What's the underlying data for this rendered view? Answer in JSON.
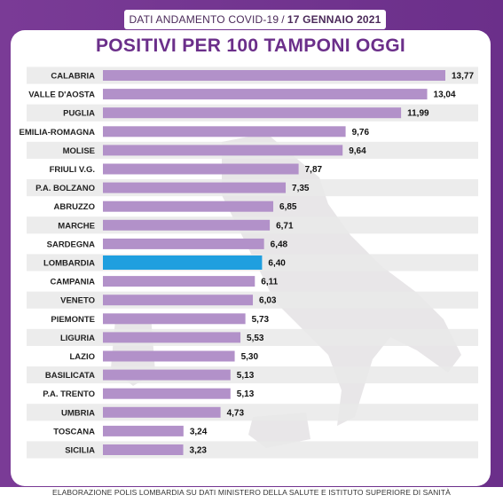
{
  "header": {
    "subtitle_left": "DATI ANDAMENTO COVID-19",
    "separator": "/",
    "date": "17 GENNAIO 2021"
  },
  "footer": {
    "text": "ELABORAZIONE POLIS LOMBARDIA SU DATI MINISTERO DELLA SALUTE E ISTITUTO SUPERIORE DI SANITÀ"
  },
  "colors": {
    "frame": "#6b2f8a",
    "bar_default": "#b291c9",
    "bar_highlight": "#1f9fdf",
    "row_shade": "#e9e9e9",
    "title": "#6b2f8a"
  },
  "chart_data": {
    "type": "bar",
    "orientation": "horizontal",
    "title": "POSITIVI PER 100 TAMPONI OGGI",
    "xlabel": "",
    "ylabel": "",
    "xlim": [
      0,
      14.6
    ],
    "grid": false,
    "legend": "none",
    "highlighted_category": "LOMBARDIA",
    "categories": [
      "CALABRIA",
      "VALLE D'AOSTA",
      "PUGLIA",
      "EMILIA-ROMAGNA",
      "MOLISE",
      "FRIULI V.G.",
      "P.A. BOLZANO",
      "ABRUZZO",
      "MARCHE",
      "SARDEGNA",
      "LOMBARDIA",
      "CAMPANIA",
      "VENETO",
      "PIEMONTE",
      "LIGURIA",
      "LAZIO",
      "BASILICATA",
      "P.A. TRENTO",
      "UMBRIA",
      "TOSCANA",
      "SICILIA"
    ],
    "values": [
      13.77,
      13.04,
      11.99,
      9.76,
      9.64,
      7.87,
      7.35,
      6.85,
      6.71,
      6.48,
      6.4,
      6.11,
      6.03,
      5.73,
      5.53,
      5.3,
      5.13,
      5.13,
      4.73,
      3.24,
      3.23
    ],
    "value_labels": [
      "13,77",
      "13,04",
      "11,99",
      "9,76",
      "9,64",
      "7,87",
      "7,35",
      "6,85",
      "6,71",
      "6,48",
      "6,40",
      "6,11",
      "6,03",
      "5,73",
      "5,53",
      "5,30",
      "5,13",
      "5,13",
      "4,73",
      "3,24",
      "3,23"
    ]
  }
}
